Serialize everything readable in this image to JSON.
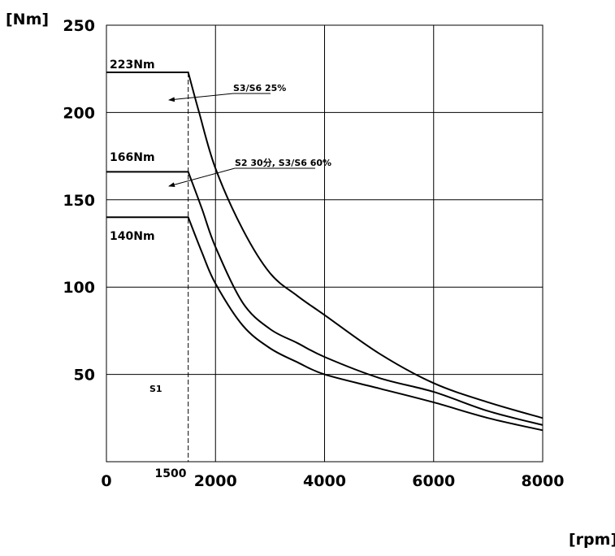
{
  "chart_data": {
    "type": "line",
    "title": "",
    "xlabel": "[rpm]",
    "ylabel": "[Nm]",
    "xlim": [
      0,
      8000
    ],
    "ylim": [
      0,
      250
    ],
    "x_ticks": [
      "0",
      "2000",
      "4000",
      "6000",
      "8000"
    ],
    "x_extra_tick": "1500",
    "y_ticks": [
      "50",
      "100",
      "150",
      "200",
      "250"
    ],
    "grid": true,
    "base_speed_rpm": 1500,
    "series": [
      {
        "name": "S3/S6 25%",
        "label": "223Nm",
        "x": [
          0,
          1500,
          1700,
          2000,
          2500,
          3000,
          3500,
          4000,
          5000,
          6000,
          7000,
          8000
        ],
        "y": [
          223,
          223,
          200,
          168,
          133,
          108,
          95,
          84,
          62,
          45,
          34,
          25
        ]
      },
      {
        "name": "S2 30分, S3/S6 60%",
        "label": "166Nm",
        "x": [
          0,
          1500,
          1750,
          2000,
          2500,
          3000,
          3500,
          4000,
          5000,
          6000,
          7000,
          8000
        ],
        "y": [
          166,
          166,
          145,
          123,
          91,
          76,
          68,
          60,
          48,
          40,
          29,
          21
        ]
      },
      {
        "name": "S1",
        "label": "140Nm",
        "x": [
          0,
          1500,
          1750,
          2000,
          2500,
          3000,
          3500,
          4000,
          5000,
          6000,
          7000,
          8000
        ],
        "y": [
          140,
          140,
          120,
          102,
          78,
          65,
          57,
          50,
          42,
          34,
          25,
          18
        ]
      }
    ],
    "annotations": [
      "S3/S6 25%",
      "S2 30分, S3/S6 60%",
      "S1"
    ]
  }
}
